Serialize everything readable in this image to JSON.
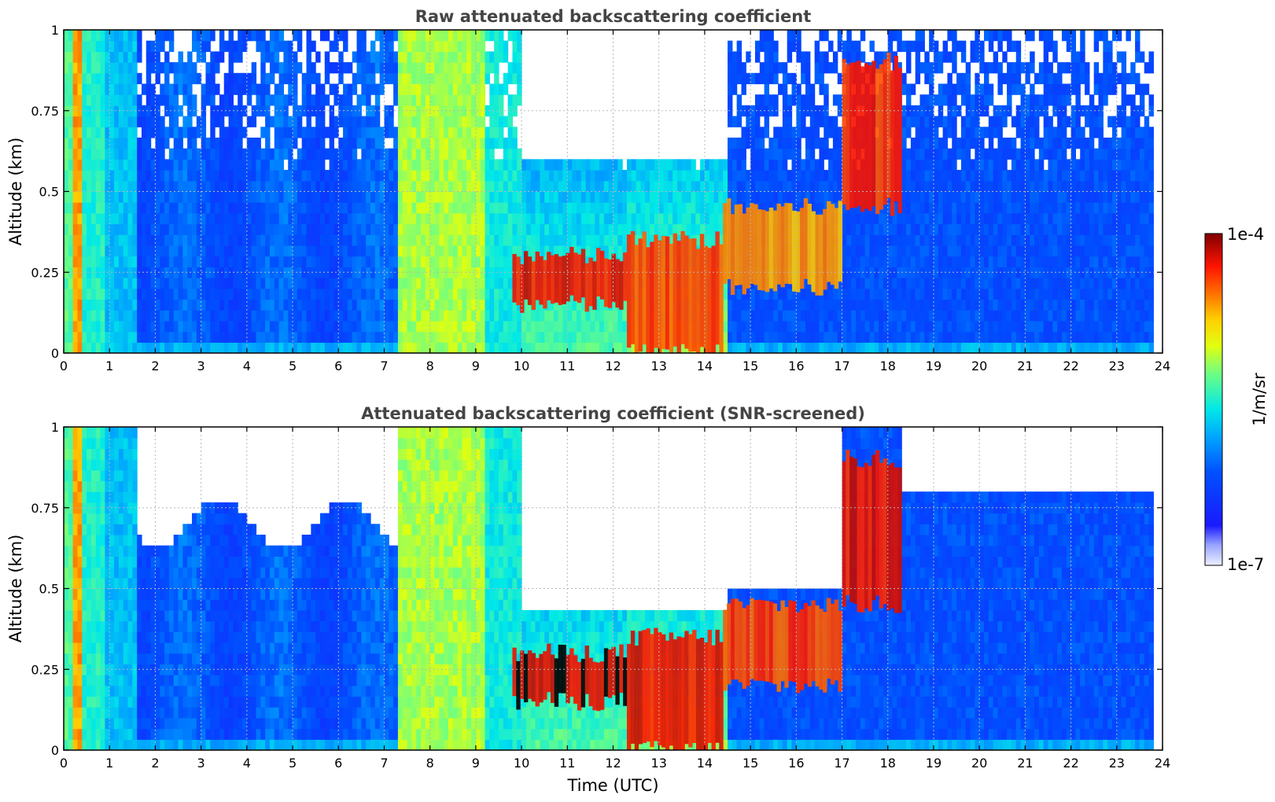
{
  "chart_data": [
    {
      "type": "heatmap",
      "title": "Raw attenuated backscattering coefficient",
      "xlabel": "",
      "ylabel": "Altitude (km)",
      "xlim": [
        0,
        24
      ],
      "ylim": [
        0,
        1
      ],
      "x_ticks": [
        "0",
        "1",
        "2",
        "3",
        "4",
        "5",
        "6",
        "7",
        "8",
        "9",
        "10",
        "11",
        "12",
        "13",
        "14",
        "15",
        "16",
        "17",
        "18",
        "19",
        "20",
        "21",
        "22",
        "23",
        "24"
      ],
      "y_ticks": [
        {
          "value": 0,
          "label": "0"
        },
        {
          "value": 0.25,
          "label": "0.25"
        },
        {
          "value": 0.5,
          "label": "0.5"
        },
        {
          "value": 0.75,
          "label": "0.75"
        },
        {
          "value": 1,
          "label": "1"
        }
      ],
      "grid": true,
      "screened": false,
      "features": [
        {
          "kind": "aerosol_column",
          "x": [
            7.3,
            9.2
          ],
          "y": [
            0,
            1
          ],
          "level": 0.62
        },
        {
          "kind": "aerosol_column",
          "x": [
            9.2,
            10.0
          ],
          "y": [
            0,
            1
          ],
          "level": 0.5
        },
        {
          "kind": "cloud_layer",
          "x": [
            9.8,
            12.3
          ],
          "y": [
            0.15,
            0.3
          ],
          "level": 0.95
        },
        {
          "kind": "cloud_layer",
          "x": [
            12.3,
            14.4
          ],
          "y": [
            0.0,
            0.35
          ],
          "level": 0.9
        },
        {
          "kind": "cloud_layer",
          "x": [
            14.4,
            17.0
          ],
          "y": [
            0.2,
            0.45
          ],
          "level": 0.82
        },
        {
          "kind": "cloud_layer",
          "x": [
            17.0,
            18.3
          ],
          "y": [
            0.45,
            0.9
          ],
          "level": 0.92
        }
      ]
    },
    {
      "type": "heatmap",
      "title": "Attenuated backscattering coefficient (SNR-screened)",
      "xlabel": "Time (UTC)",
      "ylabel": "Altitude (km)",
      "xlim": [
        0,
        24
      ],
      "ylim": [
        0,
        1
      ],
      "x_ticks": [
        "0",
        "1",
        "2",
        "3",
        "4",
        "5",
        "6",
        "7",
        "8",
        "9",
        "10",
        "11",
        "12",
        "13",
        "14",
        "15",
        "16",
        "17",
        "18",
        "19",
        "20",
        "21",
        "22",
        "23",
        "24"
      ],
      "y_ticks": [
        {
          "value": 0,
          "label": "0"
        },
        {
          "value": 0.25,
          "label": "0.25"
        },
        {
          "value": 0.5,
          "label": "0.5"
        },
        {
          "value": 0.75,
          "label": "0.75"
        },
        {
          "value": 1,
          "label": "1"
        }
      ],
      "grid": true,
      "screened": true,
      "features": [
        {
          "kind": "aerosol_column",
          "x": [
            7.3,
            9.2
          ],
          "y": [
            0,
            1
          ],
          "level": 0.62
        },
        {
          "kind": "aerosol_column",
          "x": [
            9.2,
            10.0
          ],
          "y": [
            0,
            1
          ],
          "level": 0.5
        },
        {
          "kind": "cloud_layer",
          "x": [
            9.8,
            12.3
          ],
          "y": [
            0.15,
            0.3
          ],
          "level": 0.98
        },
        {
          "kind": "cloud_layer",
          "x": [
            12.3,
            14.4
          ],
          "y": [
            0.0,
            0.35
          ],
          "level": 0.95
        },
        {
          "kind": "cloud_layer",
          "x": [
            14.4,
            17.0
          ],
          "y": [
            0.2,
            0.45
          ],
          "level": 0.9
        },
        {
          "kind": "cloud_layer",
          "x": [
            17.0,
            18.3
          ],
          "y": [
            0.45,
            0.9
          ],
          "level": 0.95
        }
      ]
    }
  ],
  "colorbar": {
    "label": "1/m/sr",
    "min_label": "1e-7",
    "max_label": "1e-4",
    "scale": "log",
    "colormap": "jet"
  }
}
